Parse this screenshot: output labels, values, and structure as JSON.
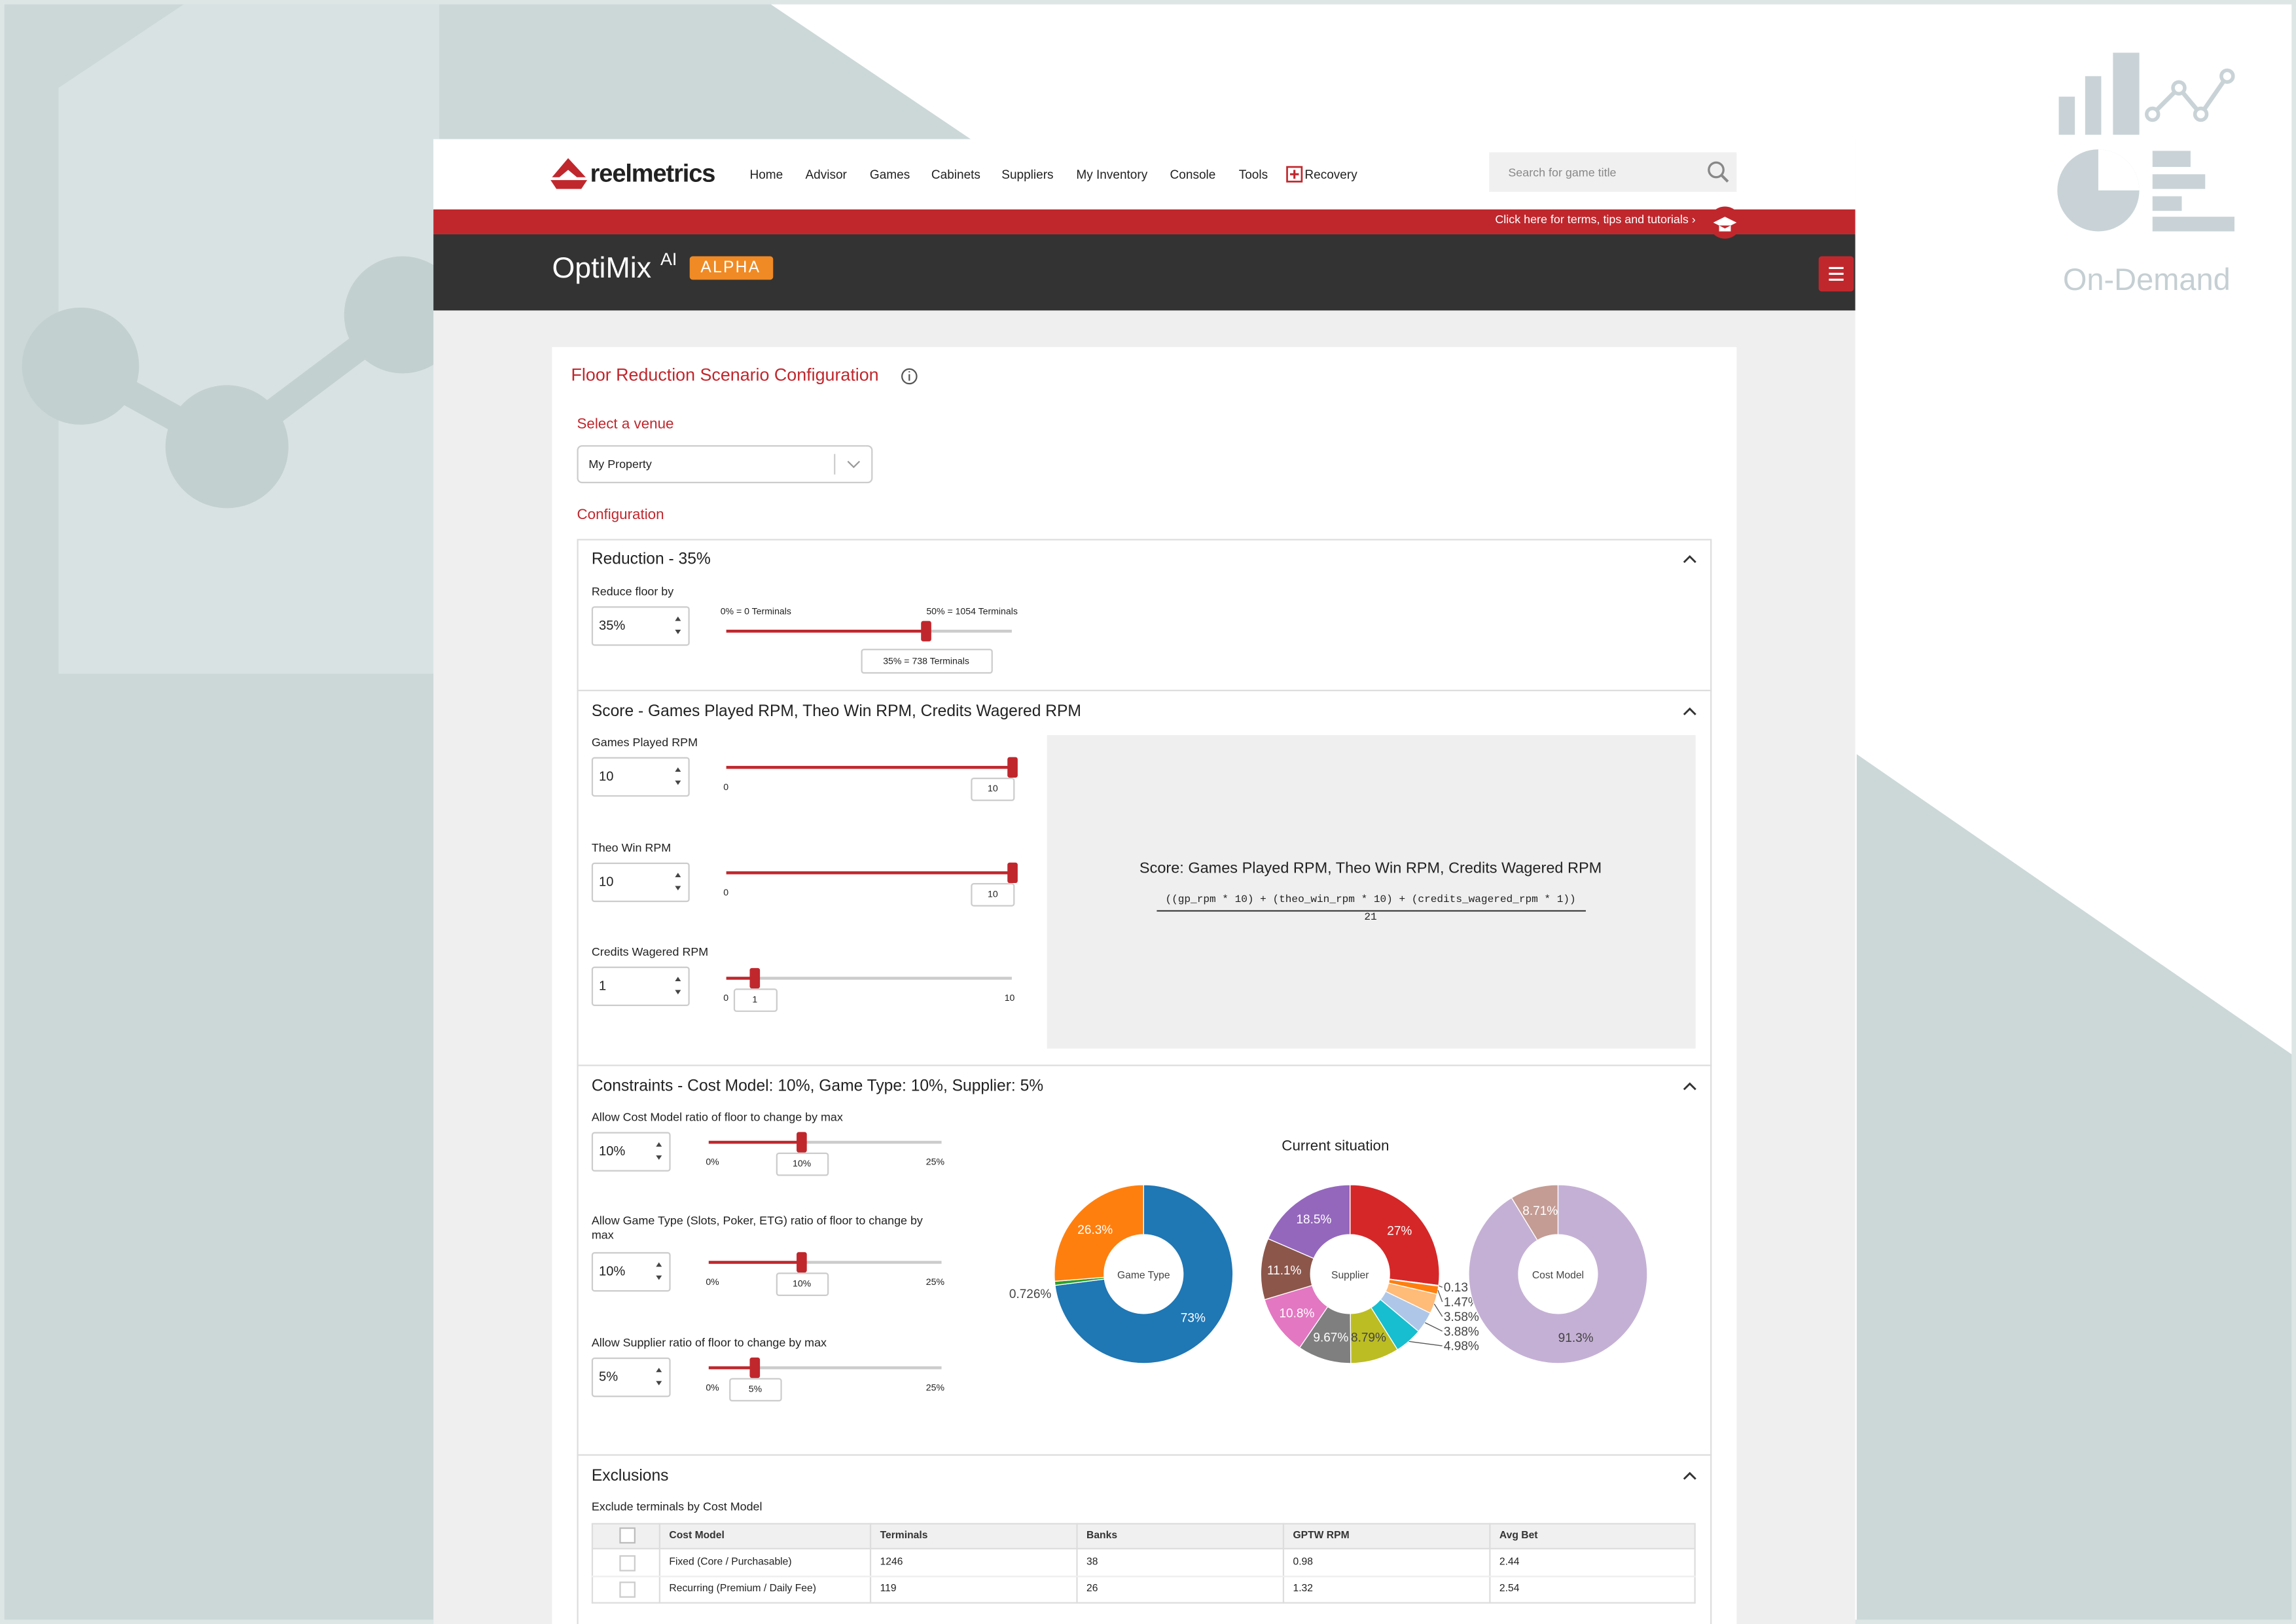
{
  "nav": {
    "logo": "reelmetrics",
    "items": [
      "Home",
      "Advisor",
      "Games",
      "Cabinets",
      "Suppliers",
      "My Inventory",
      "Console",
      "Tools",
      "Recovery"
    ],
    "search_placeholder": "Search for game title"
  },
  "banner": {
    "text": "Click here for terms, tips and tutorials ›"
  },
  "app": {
    "title": "OptiMix",
    "superscript": "AI",
    "badge": "ALPHA"
  },
  "side": {
    "label": "On-Demand"
  },
  "page": {
    "title": "Floor Reduction Scenario Configuration",
    "venue_label": "Select a venue",
    "venue": "My Property",
    "config_label": "Configuration"
  },
  "reduction": {
    "heading": "Reduction - 35%",
    "label": "Reduce floor by",
    "input": "35%",
    "slider": {
      "min": {
        "value": 0,
        "label": "0% = 0 Terminals"
      },
      "max": {
        "value": 50,
        "label": "50% = 1054 Terminals"
      },
      "value": {
        "value": 35,
        "label": "35% = 738 Terminals"
      }
    }
  },
  "score": {
    "heading": "Score - Games Played RPM, Theo Win RPM, Credits Wagered RPM",
    "sliders": [
      {
        "label": "Games Played RPM",
        "min": 0,
        "max": 10,
        "value": 10
      },
      {
        "label": "Theo Win RPM",
        "min": 0,
        "max": 10,
        "value": 10
      },
      {
        "label": "Credits Wagered RPM",
        "min": 0,
        "max": 10,
        "value": 1
      }
    ],
    "formula_title": "Score: Games Played RPM, Theo Win RPM, Credits Wagered RPM",
    "numerator": "((gp_rpm * 10) + (theo_win_rpm * 10) + (credits_wagered_rpm * 1))",
    "denominator": "21"
  },
  "constraints": {
    "heading": "Constraints - Cost Model: 10%, Game Type: 10%, Supplier: 5%",
    "sliders": [
      {
        "label": "Allow Cost Model ratio of floor to change by max",
        "min": {
          "value": 0,
          "label": "0%"
        },
        "max": {
          "value": 25,
          "label": "25%"
        },
        "value": {
          "value": 10,
          "label": "10%"
        }
      },
      {
        "label": "Allow Game Type (Slots, Poker, ETG) ratio of floor to change by max",
        "min": {
          "value": 0,
          "label": "0%"
        },
        "max": {
          "value": 25,
          "label": "25%"
        },
        "value": {
          "value": 10,
          "label": "10%"
        }
      },
      {
        "label": "Allow Supplier ratio of floor to change by max",
        "min": {
          "value": 0,
          "label": "0%"
        },
        "max": {
          "value": 25,
          "label": "25%"
        },
        "value": {
          "value": 5,
          "label": "5%"
        }
      }
    ],
    "chart_title": "Current situation"
  },
  "chart_data": [
    {
      "type": "pie",
      "center_label": "Game Type",
      "values": [
        73,
        0.726,
        26.3
      ],
      "value_labels": [
        "73%",
        "0.726%",
        "26.3%"
      ],
      "colors": [
        "#1f77b4",
        "#2ca02c",
        "#ff7f0e"
      ]
    },
    {
      "type": "pie",
      "center_label": "Supplier",
      "values": [
        27,
        0.13,
        1.47,
        3.58,
        3.88,
        4.98,
        8.79,
        9.67,
        10.8,
        11.1,
        18.5
      ],
      "value_labels": [
        "27%",
        "0.13",
        "1.47%",
        "3.58%",
        "3.88%",
        "4.98%",
        "8.79%",
        "9.67%",
        "10.8%",
        "11.1%",
        "18.5%"
      ],
      "colors": [
        "#d62728",
        "#2ca02c",
        "#ff7f0e",
        "#ffbb78",
        "#aec7e8",
        "#17becf",
        "#bcbd22",
        "#7f7f7f",
        "#e377c2",
        "#8c564b",
        "#9467bd"
      ]
    },
    {
      "type": "pie",
      "center_label": "Cost Model",
      "values": [
        91.3,
        8.71
      ],
      "value_labels": [
        "91.3%",
        "8.71%"
      ],
      "colors": [
        "#c5b0d5",
        "#c49c94"
      ]
    }
  ],
  "exclusions": {
    "heading": "Exclusions",
    "label": "Exclude terminals by Cost Model",
    "table": {
      "columns": [
        "Cost Model",
        "Terminals",
        "Banks",
        "GPTW RPM",
        "Avg Bet"
      ],
      "rows": [
        [
          "Fixed (Core / Purchasable)",
          1246,
          38,
          0.98,
          2.44
        ],
        [
          "Recurring (Premium / Daily Fee)",
          119,
          26,
          1.32,
          2.54
        ]
      ]
    }
  }
}
